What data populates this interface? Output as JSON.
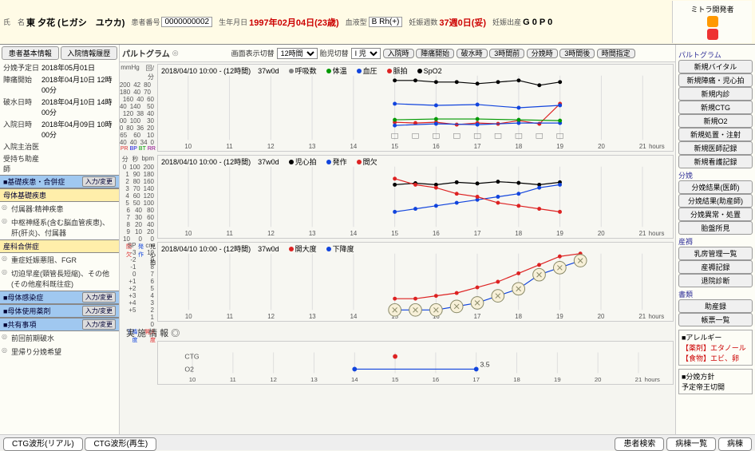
{
  "header": {
    "name_label": "氏　名",
    "name": "東 夕花 (ヒガシ　ユウカ)",
    "patient_no_label": "患者番号",
    "patient_no": "0000000002",
    "dob_label": "生年月日",
    "dob": "1997年02月04日(23歳)",
    "blood_label": "血液型",
    "blood": "B Rh(+)",
    "weeks_label": "妊娠週数",
    "weeks": "37週0日(妥)",
    "history_label": "妊娠出産",
    "history": "G 0 P 0",
    "system": "ミトラ開発者"
  },
  "left": {
    "tabs": [
      "患者基本情報",
      "入院情報履歴"
    ],
    "info": [
      {
        "k": "分娩予定日",
        "v": "2018年05月01日"
      },
      {
        "k": "陣痛開始",
        "v": "2018年04月10日 12時00分"
      },
      {
        "k": "破水日時",
        "v": "2018年04月10日 14時00分"
      },
      {
        "k": "入院日時",
        "v": "2018年04月09日 10時00分"
      },
      {
        "k": "入院主治医",
        "v": ""
      },
      {
        "k": "受持ち助産師",
        "v": ""
      }
    ],
    "sec_base": {
      "title": "■基礎疾患・合併症",
      "btn": "入力/変更"
    },
    "sec_maternal": {
      "title": "母体基礎疾患",
      "items": [
        "付属器:精神疾患",
        "中枢神経系(含む脳血管疾患)、肝(肝炎)、付属器"
      ]
    },
    "sec_ob": {
      "title": "産科合併症",
      "items": [
        "重症妊娠悪阻、FGR",
        "切迫早産(頸管長短縮)、その他(その他産科既往症)"
      ]
    },
    "sec_inf": {
      "title": "■母体感染症",
      "btn": "入力/変更"
    },
    "sec_med": {
      "title": "■母体使用薬剤",
      "btn": "入力/変更"
    },
    "sec_share": {
      "title": "■共有事項",
      "btn": "入力/変更",
      "items": [
        "前回前期破水",
        "里帰り分娩希望"
      ]
    }
  },
  "toolbar": {
    "title": "パルトグラム",
    "disp_label": "画面表示切替",
    "disp_val": "12時間",
    "fetus_label": "胎児切替",
    "fetus_val": "I 児",
    "btns": [
      "入院時",
      "陣痛開始",
      "破水時",
      "3時間前",
      "分娩時",
      "3時間後",
      "時間指定"
    ]
  },
  "charts": {
    "hours": [
      10,
      11,
      12,
      13,
      14,
      15,
      16,
      17,
      18,
      19,
      20,
      21
    ],
    "chart1": {
      "height": 110,
      "yaxis_heads": [
        "%",
        "bpm",
        "mmHg",
        "",
        "回/分"
      ],
      "yaxis_rows": [
        [
          "100",
          "200",
          "42",
          "80",
          ""
        ],
        [
          "95",
          "180",
          "40",
          "70",
          ""
        ],
        [
          "90",
          "160",
          "160",
          "40",
          "60"
        ],
        [
          "85",
          "140",
          "140",
          "",
          "50"
        ],
        [
          "80",
          "120",
          "120",
          "38",
          "40"
        ],
        [
          "75",
          "100",
          "100",
          "",
          "30"
        ],
        [
          "70",
          "80",
          "80",
          "36",
          "20"
        ],
        [
          "65",
          "",
          "60",
          "",
          "10"
        ],
        [
          "60",
          "40",
          "40",
          "34",
          "0"
        ]
      ],
      "bottom_labels": [
        "SpO2",
        "PR",
        "BP",
        "BT",
        "RR"
      ],
      "bottom_colors": [
        "#000",
        "#d33",
        "#11d",
        "#090",
        "#808"
      ],
      "title": "2018/04/10 10:00 - (12時間)　37w0d",
      "legend": [
        {
          "label": "呼吸数",
          "color": "#808080"
        },
        {
          "label": "体温",
          "color": "#009900"
        },
        {
          "label": "血圧",
          "color": "#1144dd"
        },
        {
          "label": "脈拍",
          "color": "#dd2222"
        },
        {
          "label": "SpO2",
          "color": "#000000"
        }
      ],
      "series": {
        "sp02": {
          "color": "#000",
          "pts": [
            [
              15,
              97
            ],
            [
              15.5,
              97
            ],
            [
              16,
              96
            ],
            [
              16.5,
              96
            ],
            [
              17,
              95
            ],
            [
              17.5,
              96
            ],
            [
              18,
              97
            ],
            [
              18.5,
              94
            ],
            [
              19,
              96
            ]
          ],
          "yrange": [
            60,
            100
          ]
        },
        "pulse": {
          "color": "#d22",
          "pts": [
            [
              15,
              84
            ],
            [
              15.5,
              82
            ],
            [
              16,
              84
            ],
            [
              16.5,
              78
            ],
            [
              17,
              82
            ],
            [
              17.5,
              80
            ],
            [
              18,
              88
            ],
            [
              18.5,
              80
            ],
            [
              19,
              130
            ]
          ],
          "yrange": [
            40,
            200
          ]
        },
        "bp_sys": {
          "color": "#14d",
          "pts": [
            [
              15,
              130
            ],
            [
              16,
              126
            ],
            [
              17,
              128
            ],
            [
              18,
              120
            ],
            [
              19,
              126
            ]
          ],
          "yrange": [
            40,
            200
          ],
          "bar": true
        },
        "bp_dia": {
          "color": "#14d",
          "pts": [
            [
              15,
              76
            ],
            [
              16,
              80
            ],
            [
              17,
              78
            ],
            [
              18,
              82
            ],
            [
              19,
              82
            ]
          ],
          "yrange": [
            40,
            200
          ]
        },
        "temp": {
          "color": "#090",
          "pts": [
            [
              15,
              36.5
            ],
            [
              16,
              36.6
            ],
            [
              17,
              36.6
            ],
            [
              18,
              36.5
            ],
            [
              19,
              36.4
            ]
          ],
          "yrange": [
            34,
            42
          ],
          "marker": "x"
        }
      }
    },
    "chart2": {
      "height": 105,
      "yaxis_heads": [
        "分",
        "秒",
        "bpm"
      ],
      "yaxis_rows": [
        [
          "0",
          "100",
          "200"
        ],
        [
          "1",
          "90",
          "180"
        ],
        [
          "2",
          "80",
          "160"
        ],
        [
          "3",
          "70",
          "140"
        ],
        [
          "4",
          "60",
          "120"
        ],
        [
          "5",
          "50",
          "100"
        ],
        [
          "6",
          "40",
          "80"
        ],
        [
          "7",
          "30",
          "60"
        ],
        [
          "8",
          "20",
          "40"
        ],
        [
          "9",
          "10",
          "20"
        ],
        [
          "10",
          "0",
          "0"
        ]
      ],
      "bottom_labels": [
        "間欠",
        "発作",
        "児心拍"
      ],
      "bottom_colors": [
        "#d22",
        "#14d",
        "#000"
      ],
      "title": "2018/04/10 10:00 - (12時間)　37w0d",
      "legend": [
        {
          "label": "児心拍",
          "color": "#000000"
        },
        {
          "label": "発作",
          "color": "#1144dd"
        },
        {
          "label": "間欠",
          "color": "#dd2222"
        }
      ],
      "series": {
        "fhr": {
          "color": "#000",
          "marker": "triangle",
          "pts": [
            [
              15,
              140
            ],
            [
              15.5,
              145
            ],
            [
              16,
              140
            ],
            [
              16.5,
              148
            ],
            [
              17,
              144
            ],
            [
              17.5,
              150
            ],
            [
              18,
              146
            ],
            [
              18.5,
              140
            ],
            [
              19,
              148
            ]
          ],
          "yrange": [
            0,
            200
          ]
        },
        "cont": {
          "color": "#14d",
          "pts": [
            [
              15,
              25
            ],
            [
              15.5,
              30
            ],
            [
              16,
              35
            ],
            [
              16.5,
              40
            ],
            [
              17,
              45
            ],
            [
              17.5,
              50
            ],
            [
              18,
              55
            ],
            [
              18.5,
              65
            ],
            [
              19,
              70
            ]
          ],
          "yrange": [
            0,
            100
          ]
        },
        "interval": {
          "color": "#d22",
          "pts": [
            [
              15,
              8
            ],
            [
              15.5,
              7
            ],
            [
              16,
              6.5
            ],
            [
              16.5,
              5.5
            ],
            [
              17,
              5
            ],
            [
              17.5,
              4
            ],
            [
              18,
              3.5
            ],
            [
              18.5,
              3
            ],
            [
              19,
              2.5
            ]
          ],
          "yrange": [
            0,
            10
          ],
          "invert": true
        }
      }
    },
    "chart3": {
      "height": 100,
      "yaxis_heads": [
        "SP",
        "cm"
      ],
      "yaxis_rows": [
        [
          "-3",
          "10"
        ],
        [
          "-2",
          "9"
        ],
        [
          "-1",
          "8"
        ],
        [
          "0",
          "7"
        ],
        [
          "+1",
          "6"
        ],
        [
          "+2",
          "5"
        ],
        [
          "+3",
          "4"
        ],
        [
          "+4",
          "3"
        ],
        [
          "+5",
          "2"
        ],
        [
          "",
          "1"
        ],
        [
          "",
          "0"
        ]
      ],
      "bottom_labels": [
        "下降度",
        "開大度"
      ],
      "bottom_colors": [
        "#14d",
        "#d22"
      ],
      "title": "2018/04/10 10:00 - (12時間)　37w0d",
      "legend": [
        {
          "label": "開大度",
          "color": "#dd2222"
        },
        {
          "label": "下降度",
          "color": "#1144dd"
        }
      ],
      "dilation": {
        "color": "#d22",
        "pts": [
          [
            15,
            2
          ],
          [
            15.5,
            2
          ],
          [
            16,
            2.5
          ],
          [
            16.5,
            3
          ],
          [
            17,
            4
          ],
          [
            17.5,
            5
          ],
          [
            18,
            6.5
          ],
          [
            18.5,
            8
          ],
          [
            19,
            9.5
          ],
          [
            19.5,
            10
          ]
        ],
        "yrange": [
          0,
          10
        ]
      },
      "station": {
        "color": "#14d",
        "pts": [
          [
            15,
            -3
          ],
          [
            15.5,
            -3
          ],
          [
            16,
            -3
          ],
          [
            16.5,
            -2.5
          ],
          [
            17,
            -2
          ],
          [
            17.5,
            -1
          ],
          [
            18,
            0
          ],
          [
            18.5,
            2
          ],
          [
            19,
            3
          ],
          [
            19.5,
            4
          ]
        ],
        "yrange": [
          -3,
          5
        ]
      },
      "circles": [
        [
          15,
          -3
        ],
        [
          15.5,
          -3
        ],
        [
          16,
          -3
        ],
        [
          16.5,
          -2.5
        ],
        [
          17,
          -2
        ],
        [
          17.5,
          -1
        ],
        [
          18,
          0
        ],
        [
          18.5,
          2
        ],
        [
          19,
          3
        ],
        [
          19.5,
          4
        ]
      ]
    },
    "chart4": {
      "height": 55,
      "rows": [
        "CTG",
        "O2"
      ],
      "title": "",
      "o2": {
        "color": "#14d",
        "pts": [
          [
            14,
            3
          ],
          [
            17,
            3.5
          ]
        ],
        "label": "3.5"
      },
      "ctg": {
        "color": "#d22",
        "pts": [
          [
            15,
            1
          ]
        ]
      }
    },
    "section4_title": "実 施 情 報 ◎"
  },
  "right": {
    "g1": {
      "title": "パルトグラム",
      "btns": [
        "新規バイタル",
        "新規陣痛・児心拍",
        "新規内診",
        "新規CTG",
        "新規O2",
        "新規処置・注射",
        "新規医師記録",
        "新規看護記録"
      ]
    },
    "g2": {
      "title": "分娩",
      "btns": [
        "分娩結果(医師)",
        "分娩結果(助産師)",
        "分娩異常・処置",
        "胎盤所見"
      ]
    },
    "g3": {
      "title": "産褥",
      "btns": [
        "乳房管理一覧",
        "産褥記録",
        "退院診断"
      ]
    },
    "g4": {
      "title": "書類",
      "btns": [
        "助産録",
        "帳票一覧"
      ]
    },
    "allergy": {
      "title": "■アレルギー",
      "items": [
        "【薬剤】エタノール",
        "【食物】エビ、卵"
      ]
    },
    "plan": {
      "title": "■分娩方針",
      "val": "予定帝王切開"
    }
  },
  "footer": {
    "left": [
      "CTG波形(リアル)",
      "CTG波形(再生)"
    ],
    "right": [
      "患者検索",
      "病棟一覧",
      "病棟"
    ]
  }
}
